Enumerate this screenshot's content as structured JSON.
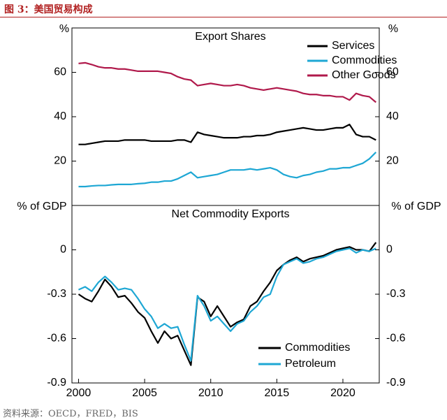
{
  "header": {
    "title": "图 3：美国贸易构成"
  },
  "footer": {
    "source": "资料来源：OECD，FRED，BIS"
  },
  "chart_data": [
    {
      "type": "line",
      "title": "Export Shares",
      "ylabel": "%",
      "xlim": [
        1999.5,
        2022.75
      ],
      "ylim": [
        0,
        80
      ],
      "yticks": [
        20,
        40,
        60
      ],
      "legend": "upper right",
      "x": [
        2000,
        2000.5,
        2001,
        2001.5,
        2002,
        2002.5,
        2003,
        2003.5,
        2004,
        2004.5,
        2005,
        2005.5,
        2006,
        2006.5,
        2007,
        2007.5,
        2008,
        2008.5,
        2009,
        2009.5,
        2010,
        2010.5,
        2011,
        2011.5,
        2012,
        2012.5,
        2013,
        2013.5,
        2014,
        2014.5,
        2015,
        2015.5,
        2016,
        2016.5,
        2017,
        2017.5,
        2018,
        2018.5,
        2019,
        2019.5,
        2020,
        2020.5,
        2021,
        2021.5,
        2022,
        2022.5
      ],
      "series": [
        {
          "name": "Services",
          "color": "#000000",
          "values": [
            27.5,
            27.5,
            28,
            28.5,
            29,
            29,
            29,
            29.5,
            29.5,
            29.5,
            29.5,
            29,
            29,
            29,
            29,
            29.5,
            29.5,
            28.5,
            33,
            32,
            31.5,
            31,
            30.5,
            30.5,
            30.5,
            31,
            31,
            31.5,
            31.5,
            32,
            33,
            33.5,
            34,
            34.5,
            35,
            34.5,
            34,
            34,
            34.5,
            35,
            35,
            36.5,
            32,
            31,
            31,
            29.5
          ]
        },
        {
          "name": "Commodities",
          "color": "#1ea7d4",
          "values": [
            8.5,
            8.5,
            8.8,
            9,
            9,
            9.3,
            9.5,
            9.5,
            9.5,
            9.8,
            10,
            10.5,
            10.5,
            11,
            11,
            12,
            13.5,
            15,
            12.5,
            13,
            13.5,
            14,
            15,
            16,
            16,
            16,
            16.5,
            16,
            16.5,
            17,
            16,
            14,
            13,
            12.5,
            13.5,
            14,
            15,
            15.5,
            16.5,
            16.5,
            17,
            17,
            18,
            19,
            21,
            24
          ]
        },
        {
          "name": "Other Goods",
          "color": "#b0194b",
          "values": [
            64,
            64.3,
            63.5,
            62.5,
            62,
            62,
            61.5,
            61.5,
            61,
            60.5,
            60.5,
            60.5,
            60.5,
            60,
            59.5,
            58,
            57,
            56.5,
            54,
            54.5,
            55,
            54.5,
            54,
            54,
            54.5,
            54,
            53,
            52.5,
            52,
            52.5,
            53,
            52.5,
            52,
            51.5,
            50.5,
            50,
            50,
            49.5,
            49.5,
            49,
            49,
            47.5,
            50.5,
            49.5,
            49,
            46.5
          ]
        }
      ]
    },
    {
      "type": "line",
      "title": "Net Commodity Exports",
      "ylabel": "% of GDP",
      "xlim": [
        1999.5,
        2022.75
      ],
      "xticks": [
        2000,
        2005,
        2010,
        2015,
        2020
      ],
      "ylim": [
        -0.9,
        0.3
      ],
      "yticks": [
        0,
        -0.3,
        -0.6,
        -0.9
      ],
      "legend": "lower right",
      "x": [
        2000,
        2000.5,
        2001,
        2001.5,
        2002,
        2002.5,
        2003,
        2003.5,
        2004,
        2004.5,
        2005,
        2005.5,
        2006,
        2006.5,
        2007,
        2007.5,
        2008,
        2008.5,
        2009,
        2009.5,
        2010,
        2010.5,
        2011,
        2011.5,
        2012,
        2012.5,
        2013,
        2013.5,
        2014,
        2014.5,
        2015,
        2015.5,
        2016,
        2016.5,
        2017,
        2017.5,
        2018,
        2018.5,
        2019,
        2019.5,
        2020,
        2020.5,
        2021,
        2021.5,
        2022,
        2022.5
      ],
      "series": [
        {
          "name": "Commodities",
          "color": "#000000",
          "values": [
            -0.3,
            -0.33,
            -0.35,
            -0.28,
            -0.2,
            -0.25,
            -0.32,
            -0.31,
            -0.36,
            -0.42,
            -0.46,
            -0.55,
            -0.63,
            -0.55,
            -0.6,
            -0.58,
            -0.68,
            -0.78,
            -0.32,
            -0.35,
            -0.45,
            -0.38,
            -0.45,
            -0.52,
            -0.49,
            -0.47,
            -0.38,
            -0.35,
            -0.28,
            -0.22,
            -0.14,
            -0.1,
            -0.07,
            -0.05,
            -0.08,
            -0.06,
            -0.05,
            -0.04,
            -0.02,
            0.0,
            0.01,
            0.02,
            0.0,
            0.0,
            -0.01,
            0.05
          ]
        },
        {
          "name": "Petroleum",
          "color": "#1ea7d4",
          "values": [
            -0.27,
            -0.25,
            -0.28,
            -0.22,
            -0.18,
            -0.22,
            -0.27,
            -0.26,
            -0.27,
            -0.33,
            -0.4,
            -0.45,
            -0.53,
            -0.5,
            -0.53,
            -0.52,
            -0.64,
            -0.75,
            -0.31,
            -0.38,
            -0.48,
            -0.45,
            -0.5,
            -0.55,
            -0.5,
            -0.48,
            -0.42,
            -0.38,
            -0.32,
            -0.3,
            -0.18,
            -0.1,
            -0.08,
            -0.06,
            -0.09,
            -0.08,
            -0.06,
            -0.05,
            -0.03,
            -0.01,
            0.0,
            0.01,
            -0.02,
            0.0,
            -0.01,
            0.01
          ]
        }
      ]
    }
  ]
}
